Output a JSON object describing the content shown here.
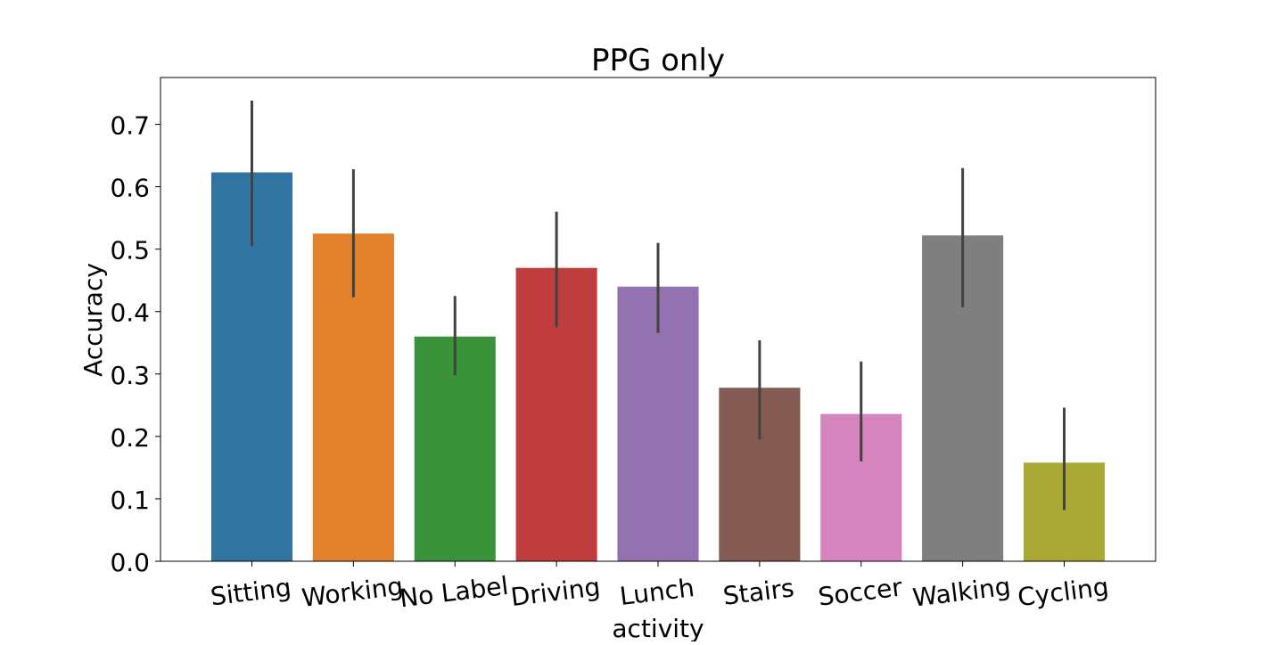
{
  "chart_data": {
    "type": "bar",
    "title": "PPG only",
    "xlabel": "activity",
    "ylabel": "Accuracy",
    "ylim": [
      0,
      0.775
    ],
    "yticks": [
      0.0,
      0.1,
      0.2,
      0.3,
      0.4,
      0.5,
      0.6,
      0.7
    ],
    "ytick_labels": [
      "0.0",
      "0.1",
      "0.2",
      "0.3",
      "0.4",
      "0.5",
      "0.6",
      "0.7"
    ],
    "grid": false,
    "categories": [
      "Sitting",
      "Working",
      "No Label",
      "Driving",
      "Lunch",
      "Stairs",
      "Soccer",
      "Walking",
      "Cycling"
    ],
    "values": [
      0.623,
      0.525,
      0.36,
      0.47,
      0.44,
      0.278,
      0.236,
      0.522,
      0.158
    ],
    "error_low": [
      0.505,
      0.423,
      0.298,
      0.375,
      0.366,
      0.195,
      0.16,
      0.407,
      0.082
    ],
    "error_high": [
      0.738,
      0.628,
      0.425,
      0.56,
      0.51,
      0.354,
      0.32,
      0.63,
      0.246
    ],
    "colors": [
      "#3274a1",
      "#e1812c",
      "#3a923a",
      "#c03d3e",
      "#9372b2",
      "#845b53",
      "#d684bd",
      "#7f7f7f",
      "#a9aa35"
    ],
    "error_bar_color": "#424242"
  }
}
